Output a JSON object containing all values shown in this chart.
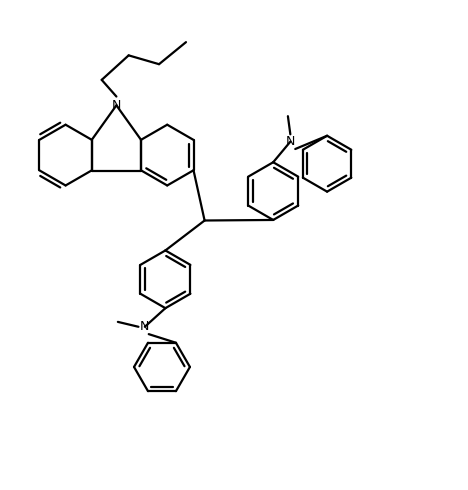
{
  "line_color": "#000000",
  "background_color": "#ffffff",
  "line_width": 1.6,
  "figsize": [
    4.68,
    4.9
  ],
  "dpi": 100,
  "xlim": [
    0,
    9.5
  ],
  "ylim": [
    0,
    10.0
  ]
}
